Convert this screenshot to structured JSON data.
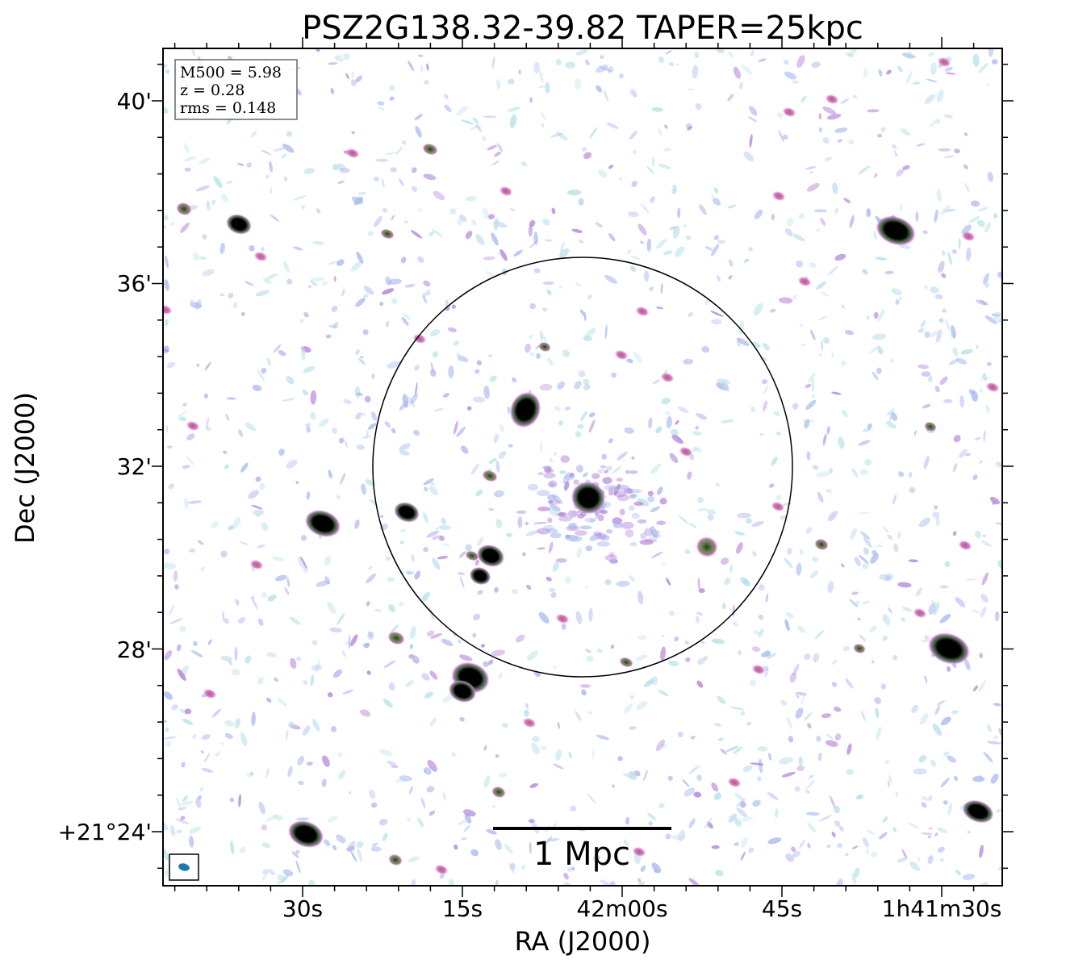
{
  "title": "PSZ2G138.32-39.82 TAPER=25kpc",
  "axes": {
    "xlabel": "RA (J2000)",
    "ylabel": "Dec (J2000)",
    "x_ticks": [
      "30s",
      "15s",
      "42m00s",
      "45s",
      "1h41m30s"
    ],
    "y_ticks": [
      "40'",
      "36'",
      "32'",
      "28'",
      "+21°24'"
    ]
  },
  "info_box": {
    "line1": "M500 = 5.98",
    "line2": "z = 0.28",
    "line3": "rms = 0.148"
  },
  "scale_bar": {
    "label": "1 Mpc"
  },
  "colors": {
    "frame": "#000000",
    "beam": "#1f77b4",
    "noise_blue": "#a8b8ef",
    "noise_cyan": "#b8e0e8",
    "noise_purple": "#b080d8",
    "source_core": "#000000",
    "source_ring": "#4a7a3a",
    "source_halo": "#c070b0"
  }
}
